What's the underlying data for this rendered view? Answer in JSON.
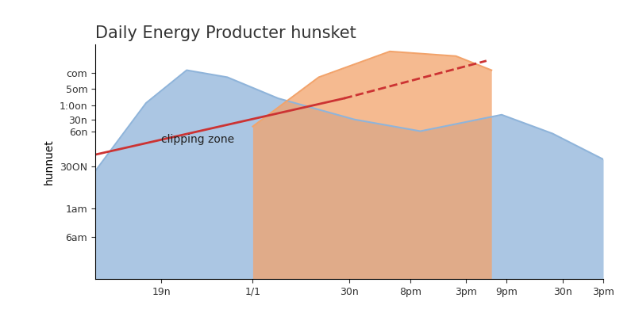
{
  "chart_data": {
    "type": "area",
    "title": "Daily Energy Producter hunsket",
    "y_label": "hunnuet",
    "xlim": [
      0,
      10
    ],
    "xticks": [
      {
        "value": 1.3,
        "label": "19n"
      },
      {
        "value": 3.1,
        "label": "1/1"
      },
      {
        "value": 5.0,
        "label": "30n"
      },
      {
        "value": 6.2,
        "label": "8pm"
      },
      {
        "value": 7.3,
        "label": "3pm"
      },
      {
        "value": 8.1,
        "label": "9pm"
      },
      {
        "value": 9.2,
        "label": "30n"
      },
      {
        "value": 10,
        "label": "3pm"
      }
    ],
    "ylim": [
      0,
      100
    ],
    "yticks": [
      {
        "value": 88,
        "label": "com"
      },
      {
        "value": 81,
        "label": "5om"
      },
      {
        "value": 74,
        "label": "1:0on"
      },
      {
        "value": 68,
        "label": "30n"
      },
      {
        "value": 63,
        "label": "6on"
      },
      {
        "value": 48,
        "label": "30ON"
      },
      {
        "value": 30,
        "label": "1am"
      },
      {
        "value": 18,
        "label": "6am"
      }
    ],
    "grid": false,
    "series": [
      {
        "type": "area",
        "color": "#8fb4da",
        "x": [
          0,
          1,
          1.8,
          2.6,
          3.6,
          5.1,
          6.4,
          8,
          9,
          10
        ],
        "values": [
          46,
          75,
          89,
          86,
          77,
          68,
          63,
          70,
          62,
          51
        ]
      },
      {
        "type": "area",
        "color": "#f2a36b",
        "x": [
          3.1,
          4.4,
          5.8,
          7.1,
          7.8
        ],
        "values": [
          65,
          86,
          97,
          95,
          89
        ]
      },
      {
        "type": "line",
        "color": "#cc3333",
        "line_style": "solid",
        "x": [
          0,
          4.9
        ],
        "values": [
          53,
          77
        ]
      },
      {
        "type": "line",
        "color": "#cc3333",
        "line_style": "dashed",
        "x": [
          4.9,
          7.7
        ],
        "values": [
          77,
          93
        ]
      }
    ],
    "annotations": [
      {
        "text": "clipping zone",
        "x": 1.3,
        "y": 58
      }
    ]
  }
}
